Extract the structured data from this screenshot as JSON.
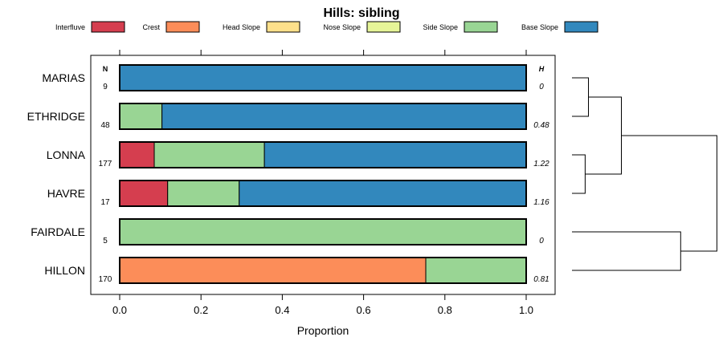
{
  "chart_data": {
    "type": "bar",
    "orientation": "horizontal-stacked",
    "title": "Hills: sibling",
    "xlabel": "Proportion",
    "xlim": [
      0,
      1
    ],
    "xticks": [
      "0.0",
      "0.2",
      "0.4",
      "0.6",
      "0.8",
      "1.0"
    ],
    "xtick_values": [
      0,
      0.2,
      0.4,
      0.6,
      0.8,
      1.0
    ],
    "legend": [
      {
        "name": "Interfluve",
        "color": "#d53e4f"
      },
      {
        "name": "Crest",
        "color": "#fc8d59"
      },
      {
        "name": "Head Slope",
        "color": "#fee08b"
      },
      {
        "name": "Nose Slope",
        "color": "#e6f598"
      },
      {
        "name": "Side Slope",
        "color": "#99d594"
      },
      {
        "name": "Base Slope",
        "color": "#3288bd"
      }
    ],
    "n_header": "N",
    "h_header": "H",
    "categories": [
      "MARIAS",
      "ETHRIDGE",
      "LONNA",
      "HAVRE",
      "FAIRDALE",
      "HILLON"
    ],
    "n": [
      "9",
      "48",
      "177",
      "17",
      "5",
      "170"
    ],
    "h": [
      "0",
      "0.48",
      "1.22",
      "1.16",
      "0",
      "0.81"
    ],
    "series": [
      {
        "name": "Interfluve",
        "values": [
          0,
          0,
          0.085,
          0.118,
          0,
          0
        ]
      },
      {
        "name": "Crest",
        "values": [
          0,
          0,
          0,
          0,
          0,
          0.753
        ]
      },
      {
        "name": "Head Slope",
        "values": [
          0,
          0,
          0,
          0,
          0,
          0
        ]
      },
      {
        "name": "Nose Slope",
        "values": [
          0,
          0,
          0,
          0,
          0,
          0
        ]
      },
      {
        "name": "Side Slope",
        "values": [
          0,
          0.104,
          0.271,
          0.176,
          1.0,
          0.247
        ]
      },
      {
        "name": "Base Slope",
        "values": [
          1.0,
          0.896,
          0.644,
          0.706,
          0,
          0
        ]
      }
    ],
    "dendrogram": {
      "type": "hierarchical-clustering",
      "merges": [
        {
          "members": [
            "MARIAS",
            "ETHRIDGE"
          ],
          "height": 0.05
        },
        {
          "members": [
            "LONNA",
            "HAVRE"
          ],
          "height": 0.04
        },
        {
          "members": [
            "MARIAS",
            "ETHRIDGE",
            "LONNA",
            "HAVRE"
          ],
          "height": 0.15
        },
        {
          "members": [
            "FAIRDALE",
            "HILLON"
          ],
          "height": 0.33
        },
        {
          "members": [
            "MARIAS",
            "ETHRIDGE",
            "LONNA",
            "HAVRE",
            "FAIRDALE",
            "HILLON"
          ],
          "height": 0.44
        }
      ]
    }
  }
}
